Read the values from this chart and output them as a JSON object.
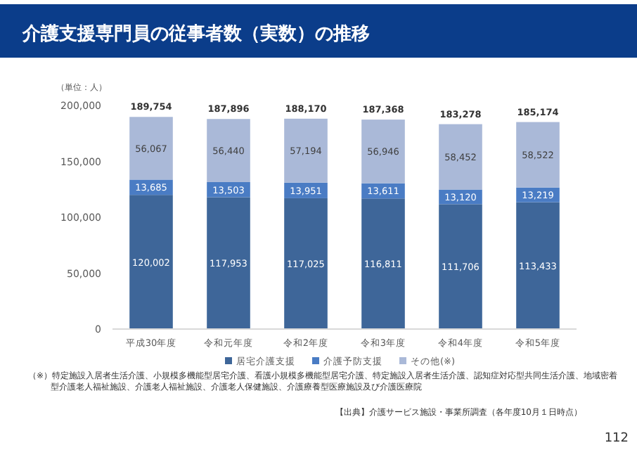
{
  "chart_data": {
    "type": "bar",
    "stacked": true,
    "title": "介護支援専門員の従事者数（実数）の推移",
    "ylabel": "（単位：人）",
    "categories": [
      "平成30年度",
      "令和元年度",
      "令和2年度",
      "令和3年度",
      "令和4年度",
      "令和5年度"
    ],
    "series": [
      {
        "name": "居宅介護支援",
        "color": "#3e6699",
        "values": [
          120002,
          117953,
          117025,
          116811,
          111706,
          113433
        ],
        "value_labels": [
          "120,002",
          "117,953",
          "117,025",
          "116,811",
          "111,706",
          "113,433"
        ]
      },
      {
        "name": "介護予防支援",
        "color": "#4a7cc4",
        "values": [
          13685,
          13503,
          13951,
          13611,
          13120,
          13219
        ],
        "value_labels": [
          "13,685",
          "13,503",
          "13,951",
          "13,611",
          "13,120",
          "13,219"
        ]
      },
      {
        "name": "その他(※)",
        "color": "#aab9d8",
        "values": [
          56067,
          56440,
          57194,
          56946,
          58452,
          58522
        ],
        "value_labels": [
          "56,067",
          "56,440",
          "57,194",
          "56,946",
          "58,452",
          "58,522"
        ]
      }
    ],
    "totals": [
      "189,754",
      "187,896",
      "188,170",
      "187,368",
      "183,278",
      "185,174"
    ],
    "ylim": [
      0,
      200000
    ],
    "yticks": [
      {
        "value": 0,
        "label": "0"
      },
      {
        "value": 50000,
        "label": "50,000"
      },
      {
        "value": 100000,
        "label": "100,000"
      },
      {
        "value": 150000,
        "label": "150,000"
      },
      {
        "value": 200000,
        "label": "200,000"
      }
    ],
    "legend": "bottom",
    "annotations": [
      "（※）特定施設入居者生活介護、小規模多機能型居宅介護、看護小規模多機能型居宅介護、特定施設入居者生活介護、認知症対応型共同生活介護、地域密着型介護老人福祉施設、介護老人福祉施設、介護老人保健施設、介護療養型医療施設及び介護医療院",
      "【出典】介護サービス施設・事業所調査（各年度10月１日時点）",
      "112"
    ]
  }
}
